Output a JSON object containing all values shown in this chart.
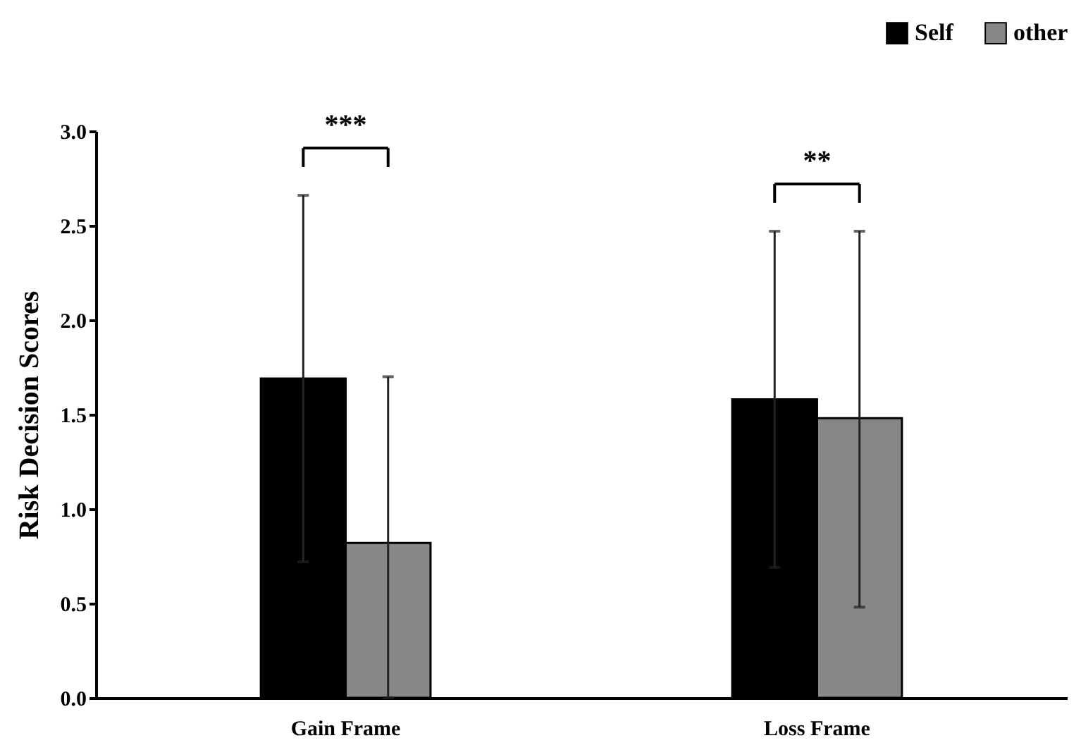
{
  "chart_data": {
    "type": "bar",
    "ylabel": "Risk Decision Scores",
    "categories": [
      "Gain Frame",
      "Loss Frame"
    ],
    "series": [
      {
        "name": "Self",
        "color": "#000000",
        "values": [
          1.69,
          1.58
        ],
        "errors": [
          0.97,
          [
            0.69,
            2.47
          ]
        ]
      },
      {
        "name": "other",
        "color": "#878787",
        "values": [
          0.82,
          1.48
        ],
        "errors": [
          [
            0.0,
            1.7
          ],
          [
            0.48,
            2.47
          ]
        ]
      }
    ],
    "ylim": [
      0,
      3
    ],
    "yticks": [
      {
        "value": 0,
        "label": "0.0"
      },
      0.5,
      {
        "value": 1,
        "label": "1.0"
      },
      1.5,
      {
        "value": 2,
        "label": "2.0"
      },
      2.5,
      {
        "value": 3,
        "label": "3.0"
      }
    ],
    "grid": false,
    "legend": "top right",
    "annotations": [
      "***",
      "**"
    ]
  }
}
